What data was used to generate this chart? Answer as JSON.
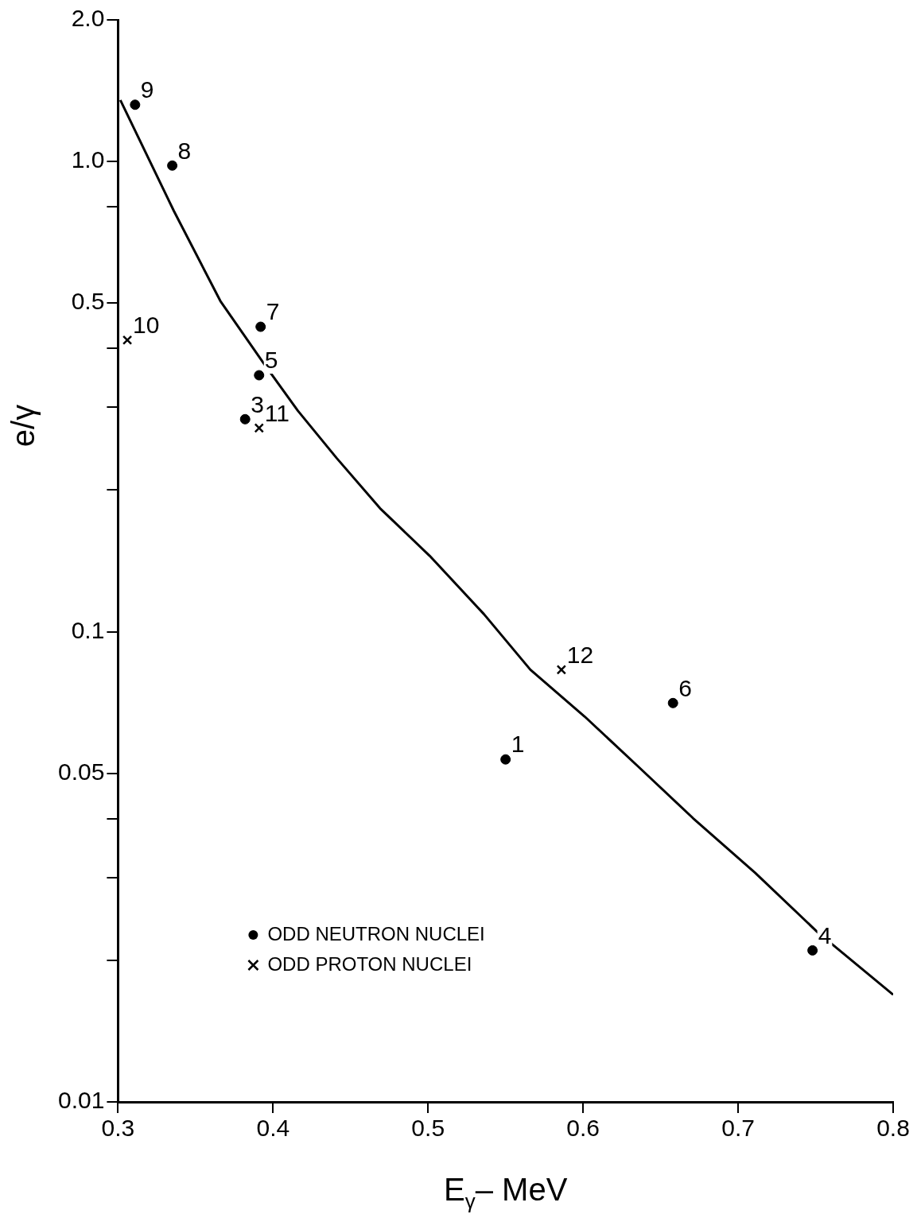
{
  "chart_data": {
    "type": "scatter",
    "xlabel": "E$_{γ}$– MeV",
    "ylabel": "e/γ",
    "log": "y",
    "xlim": [
      0.3,
      0.8
    ],
    "xticks": [
      0.3,
      0.4,
      0.5,
      0.6,
      0.7,
      0.8
    ],
    "ylim": [
      0.01,
      2
    ],
    "yticks": [
      {
        "value": 0.01,
        "label": "0.01"
      },
      {
        "value": 0.02,
        "label": null
      },
      {
        "value": 0.03,
        "label": null
      },
      {
        "value": 0.04,
        "label": null
      },
      0.05,
      0.1,
      {
        "value": 0.2,
        "label": null
      },
      {
        "value": 0.3,
        "label": null
      },
      {
        "value": 0.4,
        "label": null
      },
      0.5,
      {
        "value": 0.8,
        "label": null
      },
      {
        "value": 1,
        "label": "1.0"
      },
      {
        "value": 2,
        "label": "2.0"
      }
    ],
    "legend": "bottom left",
    "grid": false,
    "series": [
      {
        "name": "ODD NEUTRON NUCLEI",
        "marker": "circle",
        "color": "#000000",
        "x": [
          0.311,
          0.335,
          0.392,
          0.391,
          0.382,
          0.55,
          0.658,
          0.748
        ],
        "values": [
          1.32,
          0.98,
          0.445,
          0.351,
          0.283,
          0.0535,
          0.0705,
          0.021
        ]
      },
      {
        "name": "ODD PROTON NUCLEI",
        "marker": "cross",
        "color": "#000000",
        "x": [
          0.306,
          0.391,
          0.586
        ],
        "values": [
          0.417,
          0.271,
          0.083
        ]
      },
      {
        "type": "line",
        "marker": "none",
        "line_style": "solid",
        "color": "#000000",
        "x": [
          0.3015,
          0.336,
          0.366,
          0.394,
          0.416,
          0.441,
          0.469,
          0.501,
          0.536,
          0.566,
          0.601,
          0.636,
          0.671,
          0.711,
          0.751,
          0.8
        ],
        "values": [
          1.35,
          0.785,
          0.505,
          0.372,
          0.295,
          0.234,
          0.183,
          0.145,
          0.109,
          0.083,
          0.066,
          0.0515,
          0.0401,
          0.0307,
          0.023,
          0.0169
        ]
      }
    ],
    "annotations": [
      {
        "text": "9",
        "x": 0.311,
        "y": 1.32
      },
      {
        "text": "8",
        "x": 0.335,
        "y": 0.98
      },
      {
        "text": "7",
        "x": 0.392,
        "y": 0.445
      },
      {
        "text": "5",
        "x": 0.391,
        "y": 0.351
      },
      {
        "text": "3",
        "x": 0.382,
        "y": 0.283
      },
      {
        "text": "1",
        "x": 0.55,
        "y": 0.0535
      },
      {
        "text": "6",
        "x": 0.658,
        "y": 0.0705
      },
      {
        "text": "4",
        "x": 0.748,
        "y": 0.021
      },
      {
        "text": "10",
        "x": 0.306,
        "y": 0.417
      },
      {
        "text": "11",
        "x": 0.391,
        "y": 0.271
      },
      {
        "text": "12",
        "x": 0.586,
        "y": 0.083
      }
    ]
  }
}
